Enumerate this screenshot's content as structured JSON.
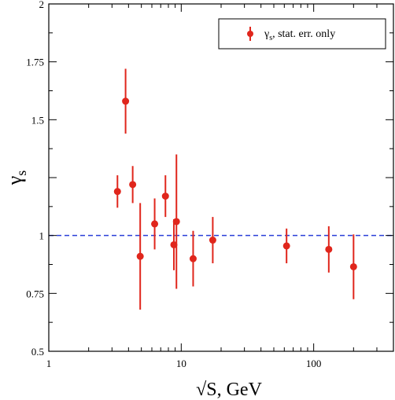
{
  "chart_data": {
    "type": "scatter",
    "title": "",
    "xlabel": "√S, GeV",
    "ylabel_main": "γ",
    "ylabel_sub": "s",
    "xscale": "log",
    "xlim": [
      1,
      400
    ],
    "ylim": [
      0.5,
      2
    ],
    "xticks": [
      1,
      10,
      100
    ],
    "xtick_labels": [
      "1",
      "10",
      "100"
    ],
    "yticks": [
      0.5,
      0.75,
      1,
      1.25,
      1.5,
      1.75,
      2
    ],
    "ytick_labels": [
      "0.5",
      "0.75",
      "1",
      "",
      "1.5",
      "1.75",
      "2"
    ],
    "grid": false,
    "legend_position": "top-right",
    "reference_line": {
      "y": 1.0,
      "style": "dashed",
      "color": "#2a3fd8"
    },
    "colors": {
      "points": "#e0261c",
      "frame": "#000000"
    },
    "series": [
      {
        "legend_main": "γ",
        "legend_sub": "s",
        "legend_rest": ", stat. err. only",
        "points": [
          {
            "x": 3.3,
            "y": 1.19,
            "err": 0.07
          },
          {
            "x": 3.8,
            "y": 1.58,
            "err": 0.14
          },
          {
            "x": 4.3,
            "y": 1.22,
            "err": 0.08
          },
          {
            "x": 4.9,
            "y": 0.91,
            "err": 0.23
          },
          {
            "x": 6.3,
            "y": 1.05,
            "err": 0.11
          },
          {
            "x": 7.6,
            "y": 1.17,
            "err": 0.09
          },
          {
            "x": 8.8,
            "y": 0.96,
            "err": 0.11
          },
          {
            "x": 9.2,
            "y": 1.06,
            "err": 0.29
          },
          {
            "x": 12.3,
            "y": 0.9,
            "err": 0.12
          },
          {
            "x": 17.3,
            "y": 0.98,
            "err": 0.1
          },
          {
            "x": 62.4,
            "y": 0.955,
            "err": 0.075
          },
          {
            "x": 130,
            "y": 0.94,
            "err": 0.1
          },
          {
            "x": 200,
            "y": 0.865,
            "err": 0.14
          }
        ]
      }
    ]
  }
}
